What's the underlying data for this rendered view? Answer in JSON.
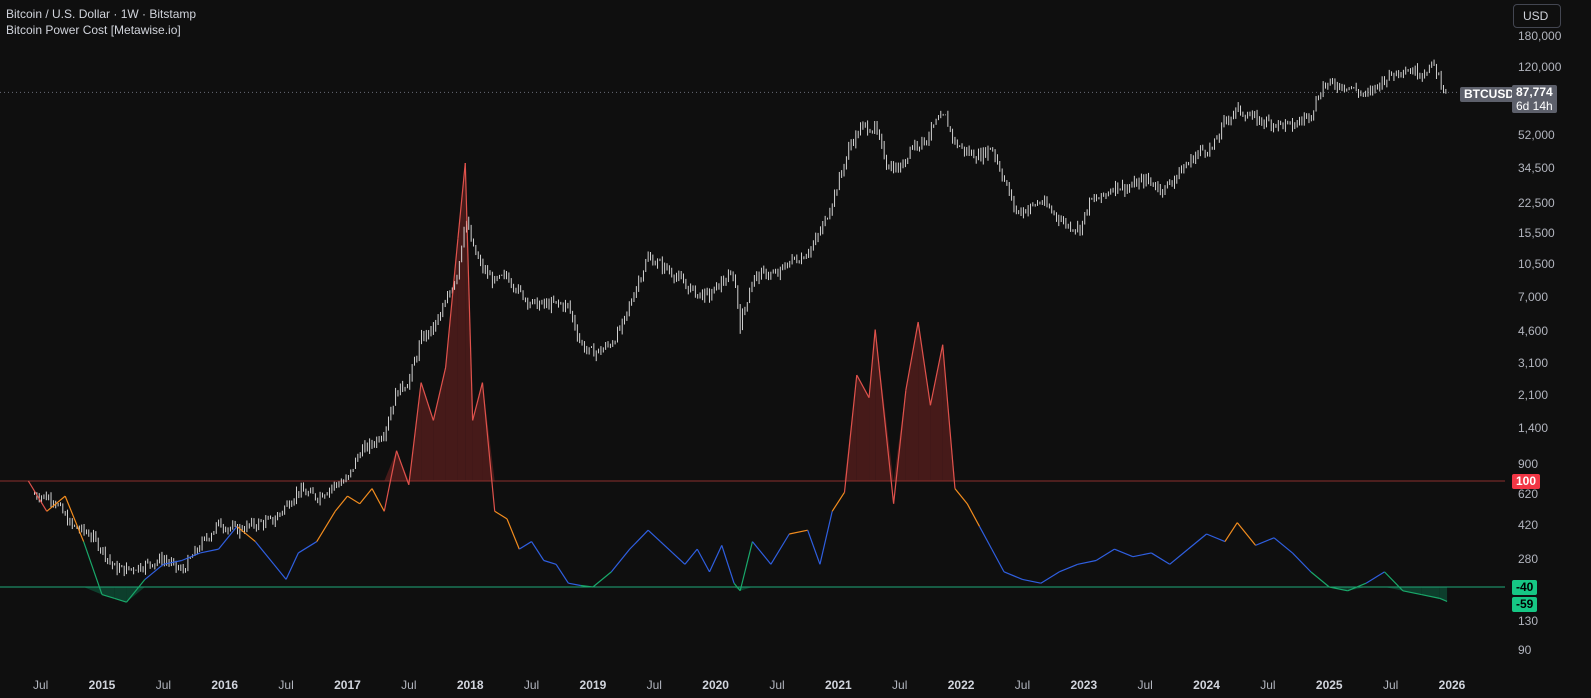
{
  "legend": {
    "symbol_line": "Bitcoin / U.S. Dollar · 1W · Bitstamp",
    "indicator_line": "Bitcoin Power Cost [Metawise.io]"
  },
  "currency_button": "USD",
  "price_tag": {
    "symbol": "BTCUSD",
    "value": "87,774",
    "countdown": "6d 14h"
  },
  "level_tags": {
    "upper": "100",
    "lower": "-40",
    "last": "-59"
  },
  "colors": {
    "background": "#0f0f0f",
    "candles": "#e6e6e6",
    "red_zone": "#e0524c",
    "orange_zone": "#f28c1e",
    "blue_zone": "#2f5fe0",
    "green_zone": "#19a86a",
    "upper_line": "#8b2f2c",
    "lower_line": "#1fa87a"
  },
  "chart_data": {
    "type": "line",
    "price_axis": {
      "scale": "log",
      "ticks": [
        "180,000",
        "120,000",
        "52,000",
        "34,500",
        "22,500",
        "15,500",
        "10,500",
        "7,000",
        "4,600",
        "3,100",
        "2,100",
        "1,400",
        "900",
        "620",
        "420",
        "280",
        "130",
        "90"
      ]
    },
    "time_axis_labels": [
      "Jul",
      "2015",
      "Jul",
      "2016",
      "Jul",
      "2017",
      "Jul",
      "2018",
      "Jul",
      "2019",
      "Jul",
      "2020",
      "Jul",
      "2021",
      "Jul",
      "2022",
      "Jul",
      "2023",
      "Jul",
      "2024",
      "Jul",
      "2025",
      "Jul",
      "2026"
    ],
    "price_series": {
      "name": "BTCUSD",
      "x": [
        2014.45,
        2014.6,
        2014.75,
        2014.9,
        2015.0,
        2015.1,
        2015.2,
        2015.35,
        2015.5,
        2015.65,
        2015.8,
        2015.95,
        2016.1,
        2016.25,
        2016.4,
        2016.5,
        2016.6,
        2016.75,
        2016.9,
        2017.0,
        2017.1,
        2017.2,
        2017.3,
        2017.4,
        2017.5,
        2017.6,
        2017.7,
        2017.8,
        2017.9,
        2017.96,
        2018.02,
        2018.1,
        2018.2,
        2018.3,
        2018.4,
        2018.5,
        2018.6,
        2018.7,
        2018.8,
        2018.9,
        2018.96,
        2019.05,
        2019.15,
        2019.25,
        2019.35,
        2019.45,
        2019.55,
        2019.65,
        2019.75,
        2019.85,
        2019.95,
        2020.05,
        2020.15,
        2020.2,
        2020.3,
        2020.4,
        2020.5,
        2020.6,
        2020.7,
        2020.8,
        2020.9,
        2021.0,
        2021.1,
        2021.2,
        2021.3,
        2021.4,
        2021.5,
        2021.6,
        2021.7,
        2021.8,
        2021.87,
        2021.95,
        2022.05,
        2022.15,
        2022.25,
        2022.35,
        2022.45,
        2022.55,
        2022.65,
        2022.75,
        2022.87,
        2022.97,
        2023.05,
        2023.15,
        2023.25,
        2023.35,
        2023.5,
        2023.65,
        2023.8,
        2023.95,
        2024.05,
        2024.15,
        2024.25,
        2024.4,
        2024.55,
        2024.7,
        2024.85,
        2024.95,
        2025.05,
        2025.15,
        2025.3,
        2025.45,
        2025.6,
        2025.75,
        2025.85,
        2025.95
      ],
      "y": [
        620,
        590,
        420,
        380,
        315,
        250,
        245,
        260,
        280,
        240,
        330,
        430,
        400,
        430,
        450,
        540,
        650,
        600,
        700,
        740,
        1050,
        1150,
        1350,
        2200,
        2500,
        4200,
        4800,
        6500,
        9800,
        19000,
        13000,
        10000,
        8500,
        9200,
        7500,
        6500,
        6400,
        6500,
        6300,
        4000,
        3600,
        3600,
        4000,
        5100,
        8000,
        11500,
        10500,
        9500,
        8200,
        7300,
        7200,
        8500,
        9300,
        5000,
        8800,
        9500,
        9200,
        11000,
        11500,
        13500,
        18500,
        29000,
        47000,
        58000,
        56000,
        36000,
        34000,
        46000,
        48000,
        61000,
        65000,
        47000,
        42000,
        40000,
        45000,
        30000,
        20000,
        21000,
        23000,
        20000,
        17000,
        16500,
        23000,
        24000,
        28000,
        27000,
        30000,
        26500,
        34000,
        43000,
        44000,
        62000,
        71000,
        63000,
        60000,
        58000,
        68000,
        96000,
        97000,
        95000,
        84000,
        104000,
        118000,
        112000,
        123000,
        87774
      ]
    },
    "indicator_series": {
      "name": "Bitcoin Power Cost",
      "x": [
        2014.4,
        2014.55,
        2014.7,
        2014.85,
        2015.0,
        2015.1,
        2015.2,
        2015.35,
        2015.5,
        2015.65,
        2015.8,
        2015.95,
        2016.1,
        2016.25,
        2016.4,
        2016.5,
        2016.6,
        2016.75,
        2016.9,
        2017.0,
        2017.1,
        2017.2,
        2017.3,
        2017.4,
        2017.5,
        2017.6,
        2017.7,
        2017.8,
        2017.9,
        2017.96,
        2018.02,
        2018.1,
        2018.2,
        2018.3,
        2018.4,
        2018.5,
        2018.6,
        2018.7,
        2018.8,
        2018.9,
        2019.0,
        2019.15,
        2019.3,
        2019.45,
        2019.55,
        2019.65,
        2019.75,
        2019.85,
        2019.95,
        2020.05,
        2020.15,
        2020.2,
        2020.3,
        2020.45,
        2020.6,
        2020.75,
        2020.85,
        2020.95,
        2021.05,
        2021.15,
        2021.25,
        2021.3,
        2021.45,
        2021.55,
        2021.65,
        2021.75,
        2021.85,
        2021.95,
        2022.05,
        2022.15,
        2022.25,
        2022.35,
        2022.5,
        2022.65,
        2022.8,
        2022.95,
        2023.1,
        2023.25,
        2023.4,
        2023.55,
        2023.7,
        2023.85,
        2024.0,
        2024.15,
        2024.25,
        2024.4,
        2024.55,
        2024.7,
        2024.85,
        2025.0,
        2025.15,
        2025.3,
        2025.45,
        2025.6,
        2025.75,
        2025.9,
        2025.96
      ],
      "y": [
        100,
        60,
        80,
        20,
        -50,
        -55,
        -60,
        -30,
        -10,
        -5,
        5,
        10,
        40,
        20,
        -10,
        -30,
        5,
        20,
        60,
        80,
        70,
        90,
        60,
        140,
        95,
        230,
        180,
        250,
        420,
        520,
        180,
        230,
        60,
        50,
        10,
        20,
        -5,
        -10,
        -35,
        -38,
        -40,
        -20,
        10,
        35,
        20,
        5,
        -10,
        10,
        -20,
        15,
        -35,
        -45,
        20,
        -10,
        30,
        35,
        -10,
        60,
        85,
        240,
        210,
        300,
        70,
        220,
        310,
        200,
        280,
        90,
        70,
        40,
        10,
        -20,
        -30,
        -35,
        -20,
        -10,
        -5,
        10,
        0,
        5,
        -10,
        10,
        30,
        20,
        45,
        15,
        25,
        5,
        -20,
        -40,
        -45,
        -35,
        -20,
        -45,
        -50,
        -55,
        -59
      ],
      "upper_level": 100,
      "lower_level": -40
    },
    "legend_position": "top-left",
    "grid": false
  }
}
